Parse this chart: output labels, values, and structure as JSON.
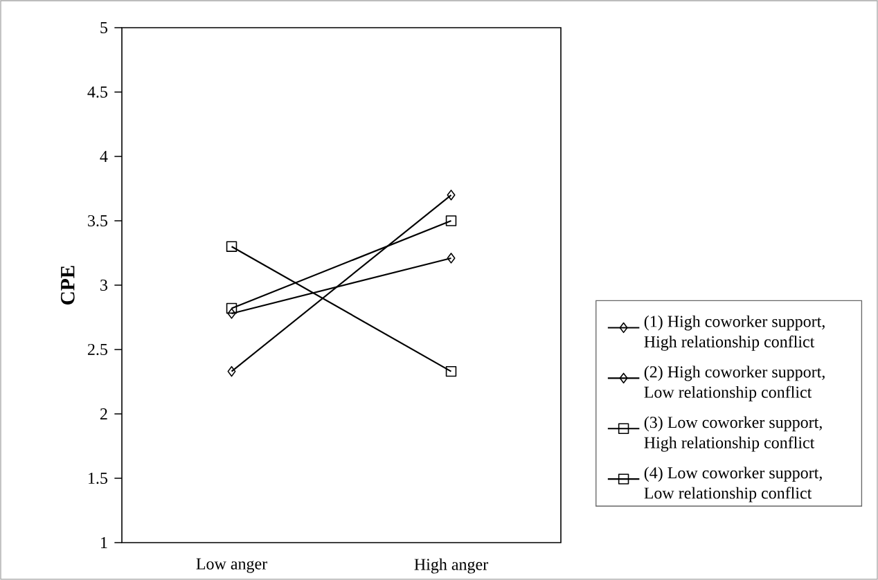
{
  "chart_data": {
    "type": "line",
    "ylabel": "CPE",
    "categories": [
      "Low anger",
      "High anger"
    ],
    "series": [
      {
        "name": "(1) High coworker support, High relationship conflict",
        "color": "#000000",
        "marker": "diamond",
        "values": [
          2.33,
          3.7
        ]
      },
      {
        "name": "(2) High coworker support, Low relationship conflict",
        "color": "#000000",
        "marker": "diamond",
        "values": [
          2.78,
          3.21
        ]
      },
      {
        "name": "(3) Low coworker support, High relationship conflict",
        "color": "#000000",
        "marker": "square",
        "values": [
          3.3,
          2.33
        ]
      },
      {
        "name": "(4) Low coworker support, Low relationship conflict",
        "color": "#000000",
        "marker": "square",
        "values": [
          2.82,
          3.5
        ]
      }
    ],
    "ylim": [
      1,
      5
    ],
    "yticks": [
      1,
      1.5,
      2,
      2.5,
      3,
      3.5,
      4,
      4.5,
      5
    ],
    "legend": "right",
    "grid": false
  }
}
